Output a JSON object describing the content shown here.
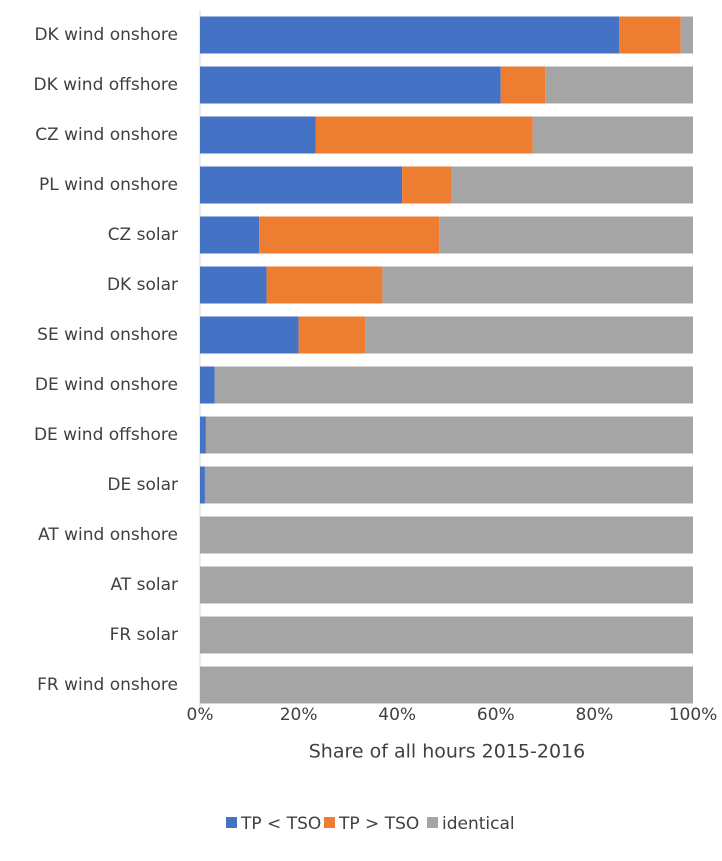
{
  "chart_data": {
    "type": "stacked-barh",
    "x_label": "Share of all hours 2015-2016",
    "categories": [
      "DK wind onshore",
      "DK wind offshore",
      "CZ wind onshore",
      "PL wind onshore",
      "CZ solar",
      "DK solar",
      "SE wind onshore",
      "DE wind onshore",
      "DE wind offshore",
      "DE solar",
      "AT wind onshore",
      "AT solar",
      "FR solar",
      "FR wind onshore"
    ],
    "series": [
      {
        "name": "TP < TSO",
        "color": "#4472c4",
        "values": [
          85,
          61,
          23.5,
          41,
          12,
          13.5,
          20,
          3,
          1.2,
          1,
          0,
          0,
          0,
          0
        ]
      },
      {
        "name": "TP > TSO",
        "color": "#ed7d31",
        "values": [
          12.5,
          9,
          44,
          10,
          36.5,
          23.5,
          13.5,
          0,
          0,
          0,
          0,
          0,
          0,
          0
        ]
      },
      {
        "name": "identical",
        "color": "#a5a5a5",
        "values": [
          2.5,
          30,
          32.5,
          49,
          51.5,
          63,
          66.5,
          97,
          98.8,
          99,
          100,
          100,
          100,
          100
        ]
      }
    ],
    "xlim": [
      0,
      100
    ],
    "xticks": [
      {
        "value": 0,
        "label": "0%"
      },
      {
        "value": 20,
        "label": "20%"
      },
      {
        "value": 40,
        "label": "40%"
      },
      {
        "value": 60,
        "label": "60%"
      },
      {
        "value": 80,
        "label": "80%"
      },
      {
        "value": 100,
        "label": "100%"
      }
    ],
    "legend": "bottom"
  }
}
